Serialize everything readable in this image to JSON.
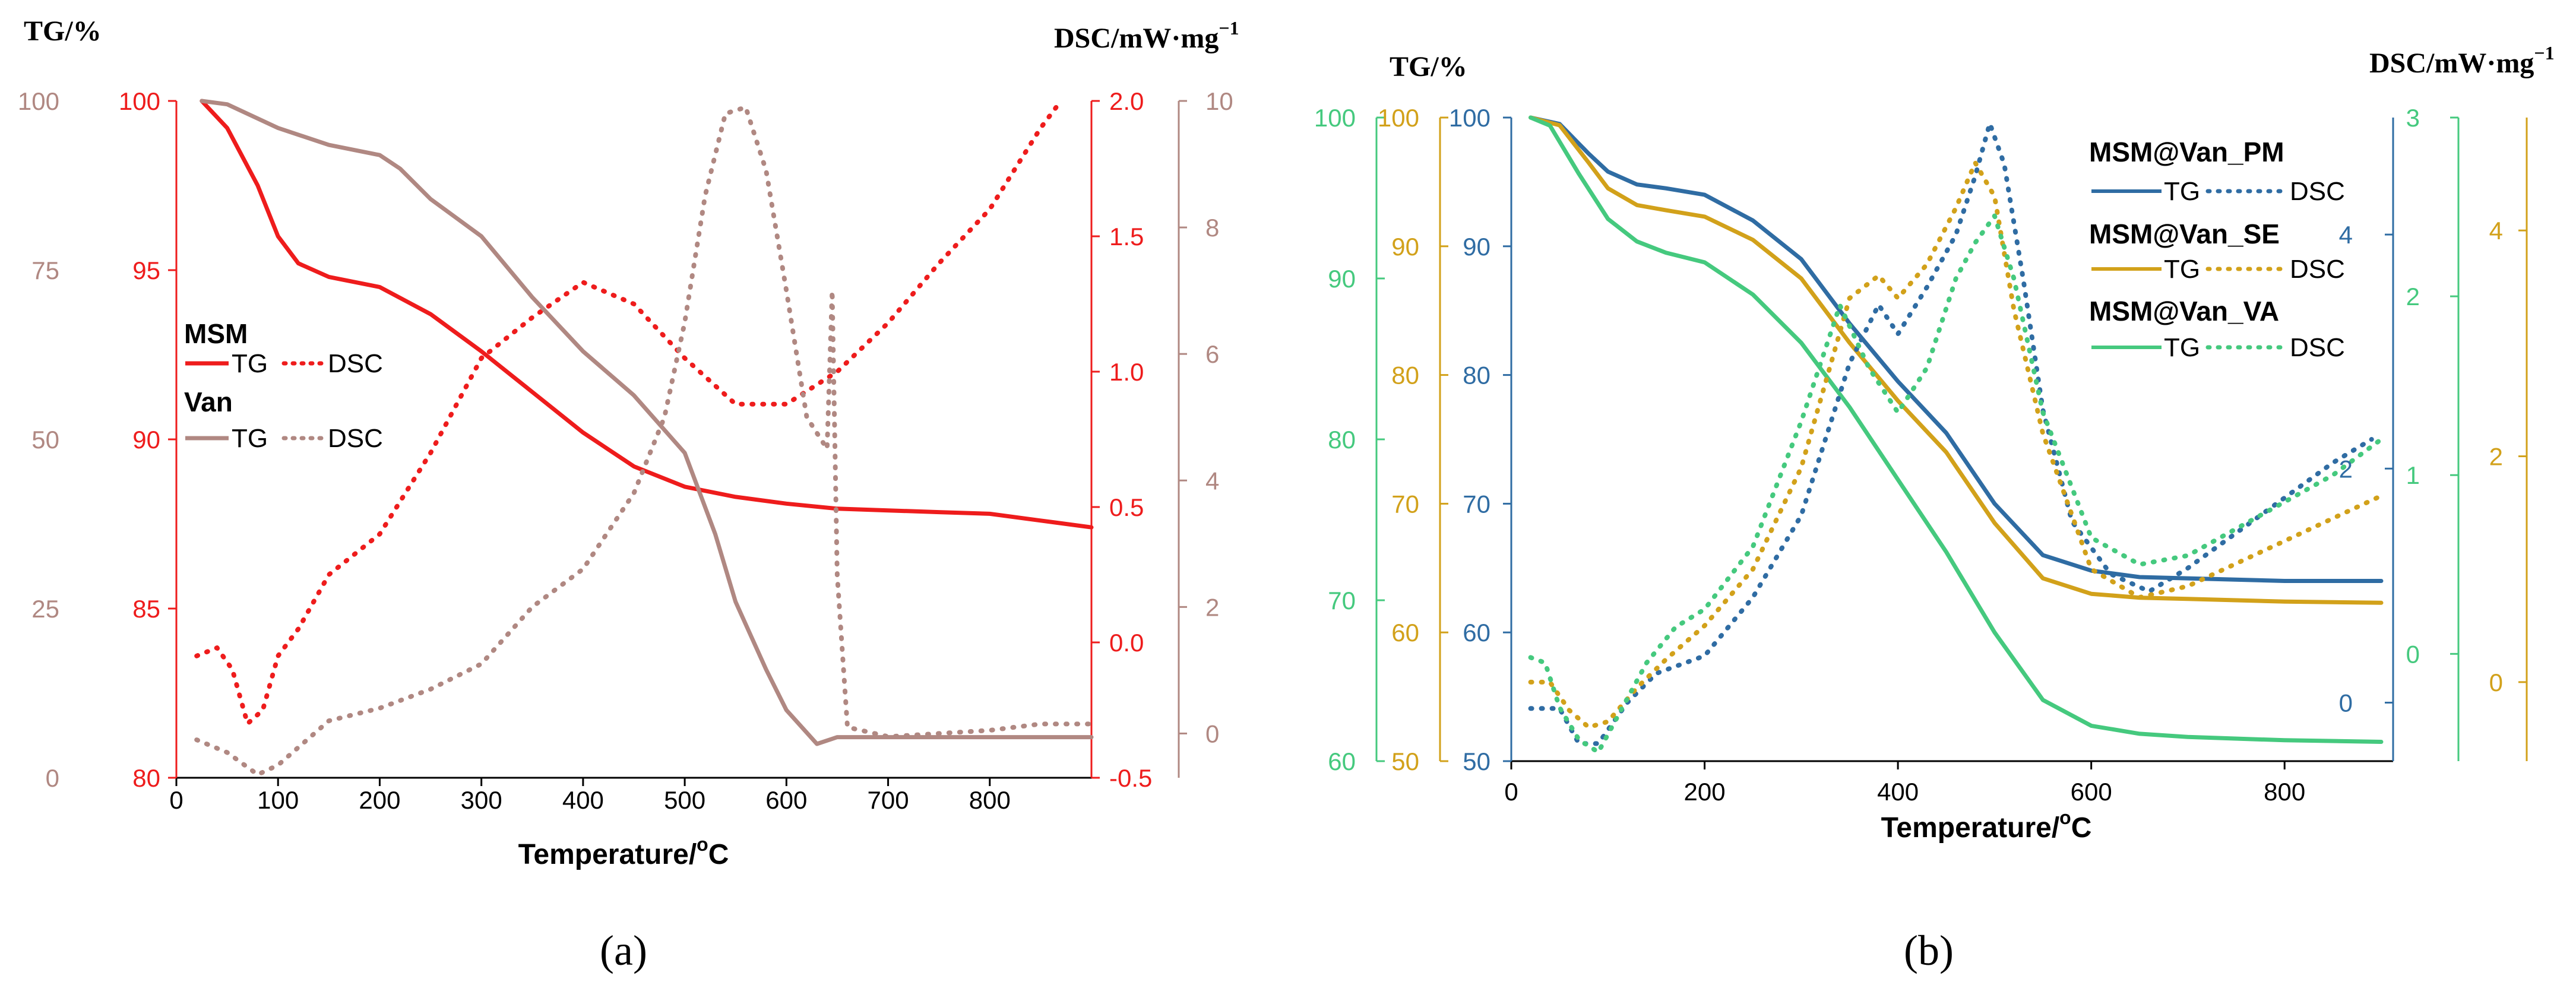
{
  "colors": {
    "red": "#ee1c1c",
    "mauve": "#b08882",
    "blue": "#2f6ca3",
    "gold": "#d2a11a",
    "green": "#45c97e",
    "black": "#000000"
  },
  "chart_data": [
    {
      "type": "line",
      "panel": "a",
      "caption": "(a)",
      "title_left": "TG/%",
      "title_right": "DSC/mW·mg",
      "title_right_sup": "−1",
      "xlabel": "Temperature/",
      "xlabel_unit": "o",
      "xlabel_tail": "C",
      "xlim": [
        0,
        900
      ],
      "xticks": [
        0,
        100,
        200,
        300,
        400,
        500,
        600,
        700,
        800
      ],
      "y_axes": [
        {
          "id": "tg_van",
          "color": "#b08882",
          "range": [
            0,
            100
          ],
          "ticks": [
            0,
            25,
            50,
            75,
            100
          ]
        },
        {
          "id": "tg_msm",
          "color": "#ee1c1c",
          "range": [
            80,
            100
          ],
          "ticks": [
            80,
            85,
            90,
            95,
            100
          ]
        },
        {
          "id": "dsc_msm",
          "color": "#ee1c1c",
          "range": [
            -0.5,
            2.0
          ],
          "ticks": [
            -0.5,
            0.0,
            0.5,
            1.0,
            1.5,
            2.0
          ]
        },
        {
          "id": "dsc_van",
          "color": "#b08882",
          "range": [
            -0.7,
            10
          ],
          "ticks": [
            0,
            2,
            4,
            6,
            8,
            10
          ]
        }
      ],
      "legend": [
        {
          "group": "MSM",
          "tg": "TG",
          "dsc": "DSC",
          "color": "#ee1c1c"
        },
        {
          "group": "Van",
          "tg": "TG",
          "dsc": "DSC",
          "color": "#b08882"
        }
      ],
      "series": [
        {
          "name": "MSM TG",
          "axis": "tg_msm",
          "color": "#ee1c1c",
          "style": "solid",
          "x": [
            25,
            50,
            80,
            100,
            120,
            150,
            200,
            250,
            300,
            350,
            400,
            450,
            500,
            550,
            600,
            650,
            700,
            750,
            800,
            850,
            900
          ],
          "y": [
            100,
            99.2,
            97.5,
            96.0,
            95.2,
            94.8,
            94.5,
            93.7,
            92.6,
            91.4,
            90.2,
            89.2,
            88.6,
            88.3,
            88.1,
            87.95,
            87.9,
            87.85,
            87.8,
            87.6,
            87.4
          ]
        },
        {
          "name": "MSM DSC",
          "axis": "dsc_msm",
          "color": "#ee1c1c",
          "style": "dotted",
          "x": [
            20,
            40,
            55,
            70,
            85,
            100,
            120,
            150,
            200,
            250,
            300,
            350,
            400,
            450,
            500,
            550,
            600,
            650,
            700,
            750,
            800,
            850,
            870
          ],
          "y": [
            -0.05,
            -0.02,
            -0.1,
            -0.3,
            -0.25,
            -0.05,
            0.05,
            0.25,
            0.4,
            0.7,
            1.05,
            1.2,
            1.33,
            1.25,
            1.05,
            0.88,
            0.88,
            1.0,
            1.18,
            1.4,
            1.6,
            1.9,
            2.0
          ]
        },
        {
          "name": "Van TG",
          "axis": "tg_van",
          "color": "#b08882",
          "style": "solid",
          "x": [
            25,
            50,
            100,
            150,
            200,
            220,
            250,
            300,
            350,
            400,
            450,
            500,
            530,
            550,
            580,
            600,
            630,
            650,
            700,
            750,
            800,
            900
          ],
          "y": [
            100,
            99.5,
            96,
            93.5,
            92,
            90,
            85.5,
            80,
            71,
            63,
            56.5,
            48,
            36,
            26,
            16,
            10,
            5,
            6,
            6,
            6,
            6,
            6
          ]
        },
        {
          "name": "Van DSC",
          "axis": "dsc_van",
          "color": "#b08882",
          "style": "dotted",
          "x": [
            20,
            50,
            80,
            100,
            150,
            200,
            250,
            300,
            350,
            400,
            450,
            480,
            500,
            520,
            540,
            560,
            580,
            600,
            620,
            640,
            645,
            650,
            660,
            700,
            750,
            800,
            850,
            900
          ],
          "y": [
            -0.1,
            -0.3,
            -0.65,
            -0.5,
            0.2,
            0.4,
            0.7,
            1.1,
            2.0,
            2.6,
            3.8,
            5.0,
            6.5,
            8.5,
            9.8,
            9.9,
            8.9,
            7.0,
            5.0,
            4.5,
            7.0,
            2.5,
            0.1,
            -0.05,
            0.0,
            0.05,
            0.15,
            0.15
          ]
        }
      ]
    },
    {
      "type": "line",
      "panel": "b",
      "caption": "(b)",
      "title_left": "TG/%",
      "title_right": "DSC/mW·mg",
      "title_right_sup": "−1",
      "xlabel": "Temperature/",
      "xlabel_unit": "o",
      "xlabel_tail": "C",
      "xlim": [
        0,
        900
      ],
      "xticks": [
        0,
        200,
        400,
        600,
        800
      ],
      "y_axes": [
        {
          "id": "tg_va",
          "color": "#45c97e",
          "range": [
            60,
            100
          ],
          "ticks": [
            60,
            70,
            80,
            90,
            100
          ]
        },
        {
          "id": "tg_se",
          "color": "#d2a11a",
          "range": [
            50,
            100
          ],
          "ticks": [
            50,
            60,
            70,
            80,
            90,
            100
          ]
        },
        {
          "id": "tg_pm",
          "color": "#2f6ca3",
          "range": [
            50,
            100
          ],
          "ticks": [
            50,
            60,
            70,
            80,
            90,
            100
          ]
        },
        {
          "id": "dsc_pm",
          "color": "#2f6ca3",
          "range": [
            -0.5,
            5.0
          ],
          "ticks": [
            0,
            2,
            4
          ]
        },
        {
          "id": "dsc_va",
          "color": "#45c97e",
          "range": [
            -0.6,
            3.0
          ],
          "ticks": [
            0,
            1,
            2,
            3
          ]
        },
        {
          "id": "dsc_se",
          "color": "#d2a11a",
          "range": [
            -0.7,
            5.0
          ],
          "ticks": [
            0,
            2,
            4
          ]
        }
      ],
      "legend": [
        {
          "group": "MSM@Van_PM",
          "tg": "TG",
          "dsc": "DSC",
          "color": "#2f6ca3"
        },
        {
          "group": "MSM@Van_SE",
          "tg": "TG",
          "dsc": "DSC",
          "color": "#d2a11a"
        },
        {
          "group": "MSM@Van_VA",
          "tg": "TG",
          "dsc": "DSC",
          "color": "#45c97e"
        }
      ],
      "series": [
        {
          "name": "MSM@Van_PM TG",
          "axis": "tg_pm",
          "color": "#2f6ca3",
          "style": "solid",
          "x": [
            20,
            50,
            80,
            100,
            130,
            160,
            200,
            250,
            300,
            350,
            400,
            450,
            500,
            550,
            600,
            650,
            700,
            800,
            900
          ],
          "y": [
            100,
            99.5,
            97.2,
            95.8,
            94.8,
            94.5,
            94,
            92,
            89,
            84,
            79.5,
            75.5,
            70,
            66,
            64.8,
            64.3,
            64.2,
            64,
            64
          ]
        },
        {
          "name": "MSM@Van_SE TG",
          "axis": "tg_se",
          "color": "#d2a11a",
          "style": "solid",
          "x": [
            20,
            50,
            80,
            100,
            130,
            160,
            200,
            250,
            300,
            350,
            400,
            450,
            500,
            550,
            600,
            650,
            700,
            800,
            900
          ],
          "y": [
            100,
            99.4,
            96.5,
            94.5,
            93.2,
            92.8,
            92.3,
            90.5,
            87.5,
            82.5,
            78,
            74,
            68.5,
            64.2,
            63,
            62.7,
            62.6,
            62.4,
            62.3
          ]
        },
        {
          "name": "MSM@Van_VA TG",
          "axis": "tg_va",
          "color": "#45c97e",
          "style": "solid",
          "x": [
            20,
            40,
            70,
            100,
            130,
            160,
            200,
            250,
            300,
            350,
            400,
            450,
            500,
            550,
            600,
            650,
            700,
            800,
            900
          ],
          "y": [
            100,
            99.5,
            96.5,
            93.7,
            92.3,
            91.6,
            91,
            89,
            86,
            82,
            77.5,
            73,
            68,
            63.8,
            62.2,
            61.7,
            61.5,
            61.3,
            61.2
          ]
        },
        {
          "name": "MSM@Van_PM DSC",
          "axis": "dsc_pm",
          "color": "#2f6ca3",
          "style": "dotted",
          "x": [
            20,
            50,
            70,
            90,
            120,
            150,
            200,
            250,
            300,
            350,
            380,
            400,
            430,
            460,
            480,
            495,
            510,
            530,
            550,
            580,
            620,
            660,
            700,
            750,
            800,
            850,
            890
          ],
          "y": [
            -0.05,
            -0.05,
            -0.35,
            -0.35,
            0.0,
            0.25,
            0.4,
            0.9,
            1.6,
            2.9,
            3.4,
            3.15,
            3.55,
            4.0,
            4.5,
            4.95,
            4.6,
            3.6,
            2.5,
            1.55,
            1.1,
            0.95,
            1.15,
            1.45,
            1.75,
            2.05,
            2.25
          ]
        },
        {
          "name": "MSM@Van_SE DSC",
          "axis": "dsc_se",
          "color": "#d2a11a",
          "style": "dotted",
          "x": [
            20,
            40,
            60,
            80,
            100,
            130,
            160,
            200,
            250,
            300,
            350,
            380,
            400,
            430,
            460,
            480,
            500,
            520,
            550,
            600,
            650,
            700,
            750,
            800,
            850,
            900
          ],
          "y": [
            0.0,
            0.0,
            -0.25,
            -0.4,
            -0.35,
            -0.05,
            0.2,
            0.5,
            1.0,
            1.9,
            3.4,
            3.6,
            3.4,
            3.7,
            4.2,
            4.6,
            4.3,
            3.3,
            2.2,
            1.0,
            0.75,
            0.85,
            1.05,
            1.25,
            1.45,
            1.65
          ]
        },
        {
          "name": "MSM@Van_VA DSC",
          "axis": "dsc_va",
          "color": "#45c97e",
          "style": "dotted",
          "x": [
            20,
            35,
            50,
            70,
            90,
            110,
            140,
            170,
            200,
            250,
            300,
            340,
            370,
            400,
            430,
            460,
            480,
            500,
            520,
            550,
            600,
            650,
            700,
            750,
            800,
            850,
            900
          ],
          "y": [
            -0.02,
            -0.05,
            -0.3,
            -0.48,
            -0.55,
            -0.35,
            -0.05,
            0.15,
            0.25,
            0.6,
            1.3,
            1.95,
            1.6,
            1.35,
            1.6,
            2.1,
            2.3,
            2.45,
            2.1,
            1.35,
            0.65,
            0.5,
            0.55,
            0.7,
            0.85,
            1.0,
            1.2
          ]
        }
      ]
    }
  ]
}
